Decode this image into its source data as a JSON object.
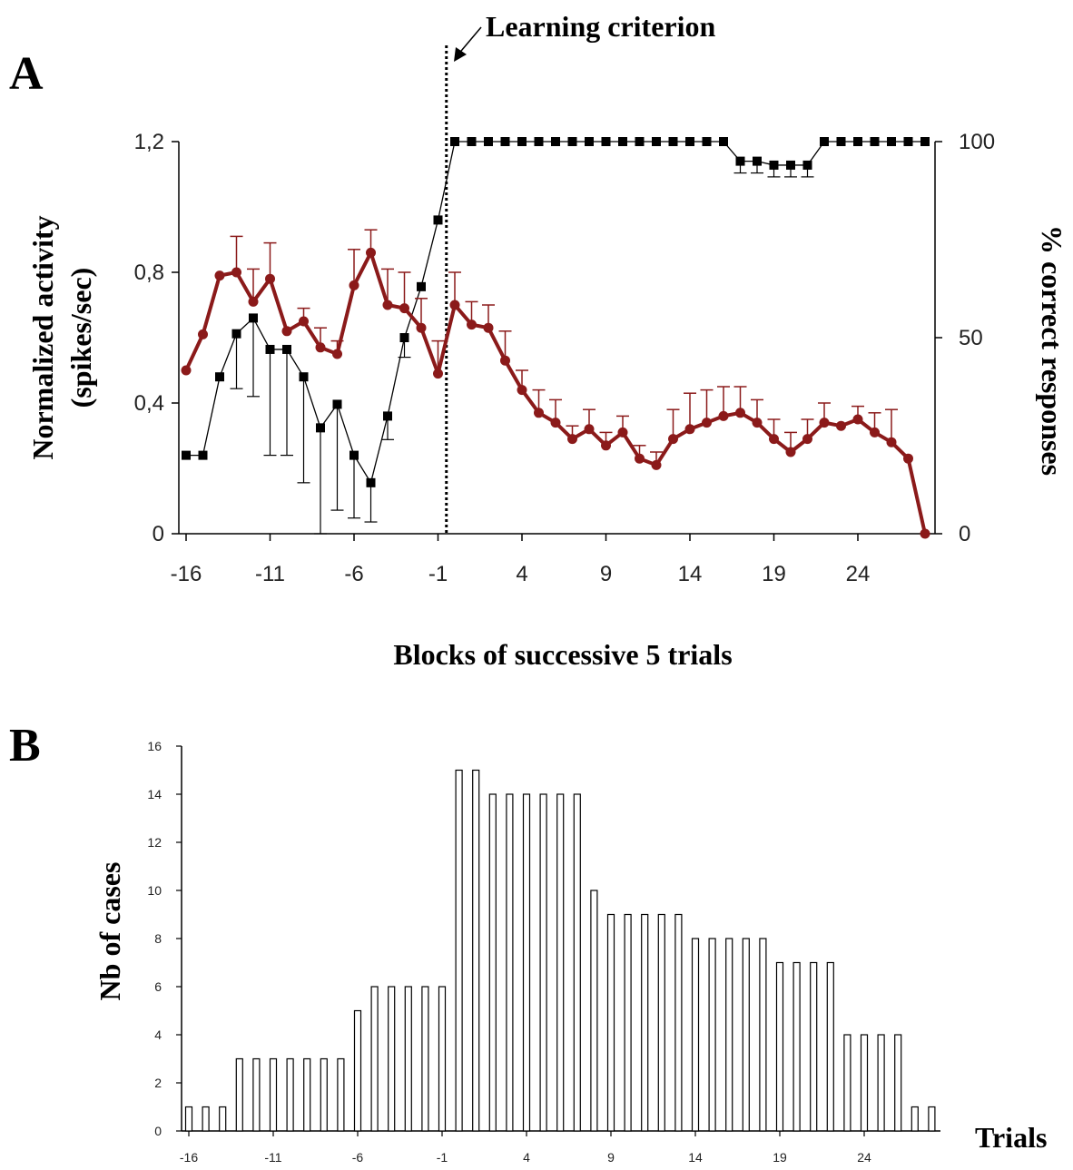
{
  "chart_data": [
    {
      "panel": "A",
      "type": "line",
      "xlabel": "Blocks of successive 5 trials",
      "ylabel": "Normalized activity",
      "ylabel_unit": "(spikes/sec)",
      "y2label": "% correct responses",
      "annotation": "Learning criterion",
      "criterion_x": -0.5,
      "xlim": [
        -16,
        29
      ],
      "ylim": [
        0,
        1.2
      ],
      "y2lim": [
        0,
        100
      ],
      "xticks": [
        "-16",
        "-11",
        "-6",
        "-1",
        "4",
        "9",
        "14",
        "19",
        "24"
      ],
      "yticks": [
        "0",
        "0,4",
        "0,8",
        "1,2"
      ],
      "y2ticks": [
        "0",
        "50",
        "100"
      ],
      "grid": false,
      "colors": {
        "activity": "#8b1a1a",
        "correct": "#000000"
      },
      "series": [
        {
          "axis": "left",
          "x": [
            -16,
            -15,
            -14,
            -13,
            -12,
            -11,
            -10,
            -9,
            -8,
            -7,
            -6,
            -5,
            -4,
            -3,
            -2,
            -1,
            0,
            1,
            2,
            3,
            4,
            5,
            6,
            7,
            8,
            9,
            10,
            11,
            12,
            13,
            14,
            15,
            16,
            17,
            18,
            19,
            20,
            21,
            22,
            23,
            24,
            25,
            26,
            27,
            28
          ],
          "y": [
            0.5,
            0.61,
            0.79,
            0.8,
            0.71,
            0.78,
            0.62,
            0.65,
            0.57,
            0.55,
            0.76,
            0.86,
            0.7,
            0.69,
            0.63,
            0.49,
            0.7,
            0.64,
            0.63,
            0.53,
            0.44,
            0.37,
            0.34,
            0.29,
            0.32,
            0.27,
            0.31,
            0.23,
            0.21,
            0.29,
            0.32,
            0.34,
            0.36,
            0.37,
            0.34,
            0.29,
            0.25,
            0.29,
            0.34,
            0.33,
            0.35,
            0.31,
            0.28,
            0.23,
            0.0
          ],
          "err": [
            0,
            0,
            0,
            0.11,
            0.1,
            0.11,
            0,
            0.04,
            0.06,
            0.04,
            0.11,
            0.07,
            0.11,
            0.11,
            0.09,
            0.1,
            0.1,
            0.07,
            0.07,
            0.09,
            0.06,
            0.07,
            0.07,
            0.04,
            0.06,
            0.04,
            0.05,
            0.04,
            0.04,
            0.09,
            0.11,
            0.1,
            0.09,
            0.08,
            0.07,
            0.06,
            0.06,
            0.06,
            0.06,
            0,
            0.04,
            0.06,
            0.1,
            0,
            0
          ]
        },
        {
          "axis": "right",
          "x": [
            -16,
            -15,
            -14,
            -13,
            -12,
            -11,
            -10,
            -9,
            -8,
            -7,
            -6,
            -5,
            -4,
            -3,
            -2,
            -1,
            0,
            1,
            2,
            3,
            4,
            5,
            6,
            7,
            8,
            9,
            10,
            11,
            12,
            13,
            14,
            15,
            16,
            17,
            18,
            19,
            20,
            21,
            22,
            23,
            24,
            25,
            26,
            27,
            28
          ],
          "y": [
            20,
            20,
            40,
            51,
            55,
            47,
            47,
            40,
            27,
            33,
            20,
            13,
            30,
            50,
            63,
            80,
            100,
            100,
            100,
            100,
            100,
            100,
            100,
            100,
            100,
            100,
            100,
            100,
            100,
            100,
            100,
            100,
            100,
            95,
            95,
            94,
            94,
            94,
            100,
            100,
            100,
            100,
            100,
            100,
            100
          ],
          "err_down": [
            0,
            0,
            0,
            14,
            20,
            27,
            27,
            27,
            27,
            27,
            16,
            10,
            6,
            5,
            0,
            0,
            0,
            0,
            0,
            0,
            0,
            0,
            0,
            0,
            0,
            0,
            0,
            0,
            0,
            0,
            0,
            0,
            0,
            3,
            3,
            3,
            3,
            3,
            0,
            0,
            0,
            0,
            0,
            0,
            0
          ]
        }
      ]
    },
    {
      "panel": "B",
      "type": "bar",
      "xlabel": "Trials",
      "ylabel": "Nb of cases",
      "ylim": [
        0,
        16
      ],
      "yticks": [
        "0",
        "2",
        "4",
        "6",
        "8",
        "10",
        "12",
        "14",
        "16"
      ],
      "xticks": [
        "-16",
        "-11",
        "-6",
        "-1",
        "4",
        "9",
        "14",
        "19",
        "24"
      ],
      "x": [
        -16,
        -15,
        -14,
        -13,
        -12,
        -11,
        -10,
        -9,
        -8,
        -7,
        -6,
        -5,
        -4,
        -3,
        -2,
        -1,
        0,
        1,
        2,
        3,
        4,
        5,
        6,
        7,
        8,
        9,
        10,
        11,
        12,
        13,
        14,
        15,
        16,
        17,
        18,
        19,
        20,
        21,
        22,
        23,
        24,
        25,
        26,
        27,
        28
      ],
      "values": [
        1,
        1,
        1,
        3,
        3,
        3,
        3,
        3,
        3,
        3,
        5,
        6,
        6,
        6,
        6,
        6,
        15,
        15,
        14,
        14,
        14,
        14,
        14,
        14,
        10,
        9,
        9,
        9,
        9,
        9,
        8,
        8,
        8,
        8,
        8,
        7,
        7,
        7,
        7,
        4,
        4,
        4,
        4,
        1,
        1
      ],
      "grid": false
    }
  ]
}
